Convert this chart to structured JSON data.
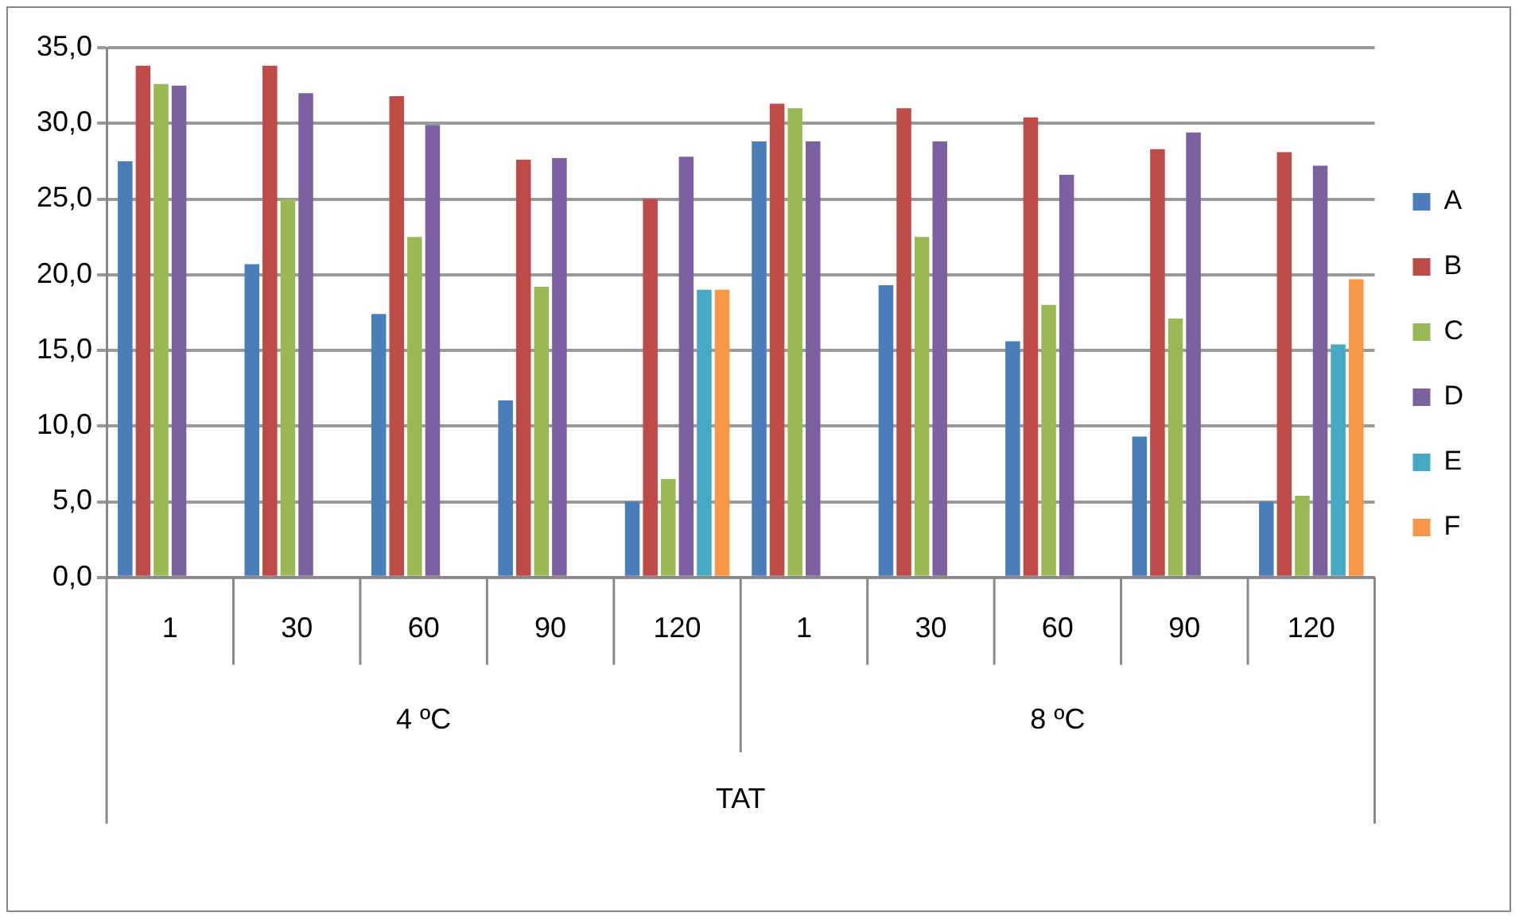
{
  "chart_data": {
    "type": "bar",
    "categories": [
      "1",
      "30",
      "60",
      "90",
      "120",
      "1",
      "30",
      "60",
      "90",
      "120"
    ],
    "xlabel": "TAT",
    "annotations": [
      "4 ºC",
      "8 ºC"
    ],
    "series": [
      {
        "name": "A",
        "color": "#4a7ebb",
        "values": [
          27.5,
          20.7,
          17.4,
          11.7,
          5.0,
          28.8,
          19.3,
          15.6,
          9.3,
          5.0
        ]
      },
      {
        "name": "B",
        "color": "#be4b48",
        "values": [
          33.8,
          33.8,
          31.8,
          27.6,
          25.0,
          31.3,
          31.0,
          30.4,
          28.3,
          28.1
        ]
      },
      {
        "name": "C",
        "color": "#98b954",
        "values": [
          32.6,
          25.0,
          22.5,
          19.2,
          6.5,
          31.0,
          22.5,
          18.0,
          17.1,
          5.4
        ]
      },
      {
        "name": "D",
        "color": "#7d60a0",
        "values": [
          32.5,
          32.0,
          29.9,
          27.7,
          27.8,
          28.8,
          28.8,
          26.6,
          29.4,
          27.2
        ]
      },
      {
        "name": "E",
        "color": "#46aac5",
        "values": [
          0,
          0,
          0,
          0,
          19.0,
          0,
          0,
          0,
          0,
          15.4
        ]
      },
      {
        "name": "F",
        "color": "#f79646",
        "values": [
          0,
          0,
          0,
          0,
          19.0,
          0,
          0,
          0,
          0,
          19.7
        ]
      }
    ],
    "ylim": [
      0,
      35
    ],
    "yticks": [
      {
        "value": 0,
        "label": "0,0"
      },
      {
        "value": 5,
        "label": "5,0"
      },
      {
        "value": 10,
        "label": "10,0"
      },
      {
        "value": 15,
        "label": "15,0"
      },
      {
        "value": 20,
        "label": "20,0"
      },
      {
        "value": 25,
        "label": "25,0"
      },
      {
        "value": 30,
        "label": "30,0"
      },
      {
        "value": 35,
        "label": "35,0"
      }
    ],
    "grid": "y",
    "legend": "right"
  }
}
